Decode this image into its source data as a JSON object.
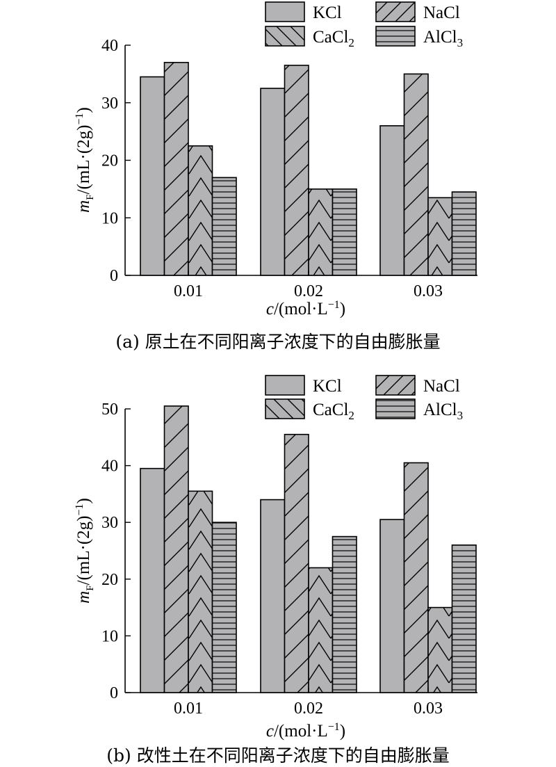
{
  "chart_data": [
    {
      "type": "bar",
      "caption": "(a) 原土在不同阳离子浓度下的自由膨胀量",
      "categories": [
        "0.01",
        "0.02",
        "0.03"
      ],
      "xlabel": {
        "var": "c",
        "unit": "/(mol·L",
        "sup": "−1",
        "close": ")"
      },
      "ylabel": {
        "var": "m",
        "sub": "F",
        "unit": "/(mL·(2g)",
        "sup": "−1",
        "close": ")"
      },
      "ylim": [
        0,
        40
      ],
      "yticks": [
        0,
        10,
        20,
        30,
        40
      ],
      "legend_position": "top",
      "series": [
        {
          "name": "KCl",
          "label": {
            "base": "KCl",
            "sub": ""
          },
          "values": [
            34.5,
            32.5,
            26.0
          ]
        },
        {
          "name": "NaCl",
          "label": {
            "base": "NaCl",
            "sub": ""
          },
          "values": [
            37.0,
            36.5,
            35.0
          ]
        },
        {
          "name": "CaCl2",
          "label": {
            "base": "CaCl",
            "sub": "2"
          },
          "values": [
            22.5,
            15.0,
            13.5
          ]
        },
        {
          "name": "AlCl3",
          "label": {
            "base": "AlCl",
            "sub": "3"
          },
          "values": [
            17.0,
            15.0,
            14.5
          ]
        }
      ]
    },
    {
      "type": "bar",
      "caption": "(b) 改性土在不同阳离子浓度下的自由膨胀量",
      "categories": [
        "0.01",
        "0.02",
        "0.03"
      ],
      "xlabel": {
        "var": "c",
        "unit": "/(mol·L",
        "sup": "−1",
        "close": ")"
      },
      "ylabel": {
        "var": "m",
        "sub": "F",
        "unit": "/(mL·(2g)",
        "sup": "−1",
        "close": ")"
      },
      "ylim": [
        0,
        50
      ],
      "yticks": [
        0,
        10,
        20,
        30,
        40,
        50
      ],
      "legend_position": "top",
      "series": [
        {
          "name": "KCl",
          "label": {
            "base": "KCl",
            "sub": ""
          },
          "values": [
            39.5,
            34.0,
            30.5
          ]
        },
        {
          "name": "NaCl",
          "label": {
            "base": "NaCl",
            "sub": ""
          },
          "values": [
            50.5,
            45.5,
            40.5
          ]
        },
        {
          "name": "CaCl2",
          "label": {
            "base": "CaCl",
            "sub": "2"
          },
          "values": [
            35.5,
            22.0,
            15.0
          ]
        },
        {
          "name": "AlCl3",
          "label": {
            "base": "AlCl",
            "sub": "3"
          },
          "values": [
            30.0,
            27.5,
            26.0
          ]
        }
      ]
    }
  ],
  "style": {
    "bar_fill": "#b3b3b5",
    "stroke": "#000000",
    "patterns": [
      "solid",
      "diagonal-forward",
      "chevron",
      "horizontal"
    ]
  }
}
